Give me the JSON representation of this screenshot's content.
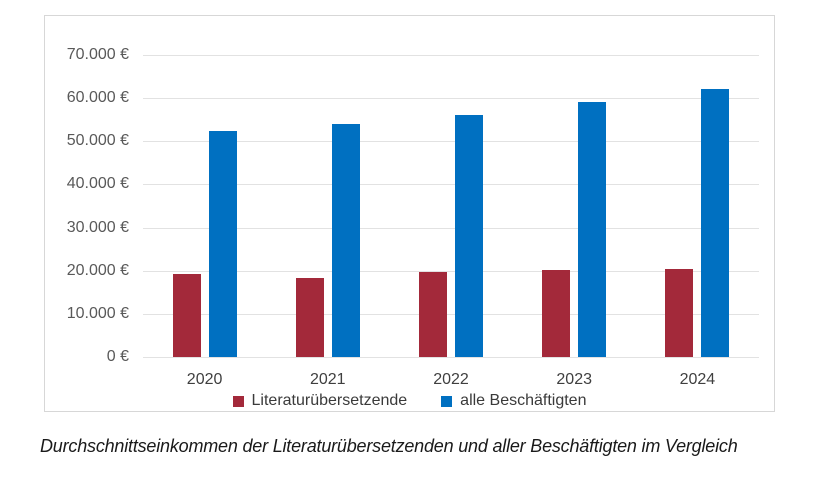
{
  "caption": "Durchschnittseinkommen der Literaturübersetzenden und aller Beschäftigten im Vergleich",
  "chart_data": {
    "type": "bar",
    "title": "",
    "categories": [
      "2020",
      "2021",
      "2022",
      "2023",
      "2024"
    ],
    "series": [
      {
        "name": "Literaturübersetzende",
        "color": "#a3293a",
        "values": [
          19200,
          18400,
          19600,
          20100,
          20300
        ]
      },
      {
        "name": "alle Beschäftigten",
        "color": "#0070c1",
        "values": [
          52400,
          54000,
          56200,
          59000,
          62200
        ]
      }
    ],
    "ylabel": "",
    "xlabel": "",
    "ylim": [
      0,
      70000
    ],
    "y_ticks": [
      {
        "value": 0,
        "label": "0 €"
      },
      {
        "value": 10000,
        "label": "10.000 €"
      },
      {
        "value": 20000,
        "label": "20.000 €"
      },
      {
        "value": 30000,
        "label": "30.000 €"
      },
      {
        "value": 40000,
        "label": "40.000 €"
      },
      {
        "value": 50000,
        "label": "50.000 €"
      },
      {
        "value": 60000,
        "label": "60.000 €"
      },
      {
        "value": 70000,
        "label": "70.000 €"
      }
    ],
    "grid": true,
    "legend_position": "bottom",
    "gridline_color": "#e2e2e2",
    "axis_text_color": "#595959"
  }
}
